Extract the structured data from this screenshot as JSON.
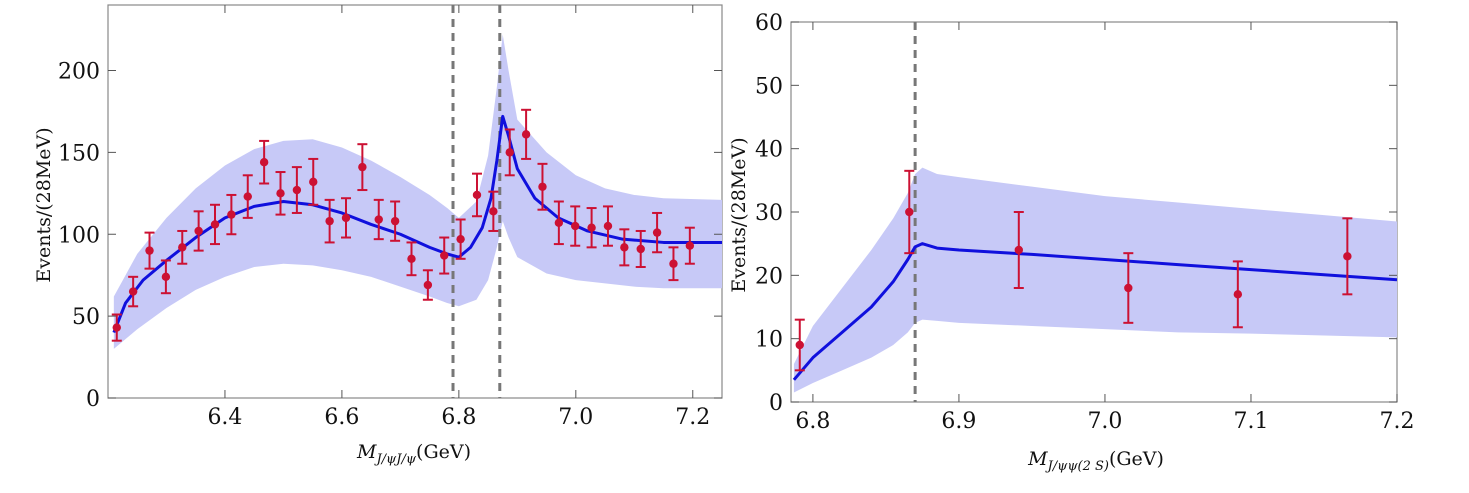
{
  "chart_data": [
    {
      "type": "line",
      "ylabel": "Events/(28MeV)",
      "xlabel_main": "M",
      "xlabel_sub": "J/ψJ/ψ",
      "xlabel_unit": "(GeV)",
      "xlim": [
        6.2,
        7.25
      ],
      "ylim": [
        0,
        240
      ],
      "xticks": [
        6.4,
        6.6,
        6.8,
        7.0,
        7.2
      ],
      "xtick_labels": [
        "6.4",
        "6.6",
        "6.8",
        "7.0",
        "7.2"
      ],
      "yticks": [
        0,
        50,
        100,
        150,
        200
      ],
      "ytick_labels": [
        "0",
        "50",
        "100",
        "150",
        "200"
      ],
      "vlines": [
        6.79,
        6.87
      ],
      "fit_curve": {
        "x": [
          6.21,
          6.23,
          6.26,
          6.3,
          6.35,
          6.4,
          6.45,
          6.5,
          6.55,
          6.6,
          6.65,
          6.7,
          6.75,
          6.78,
          6.8,
          6.82,
          6.84,
          6.855,
          6.865,
          6.875,
          6.885,
          6.9,
          6.93,
          6.97,
          7.02,
          7.08,
          7.15,
          7.25
        ],
        "y": [
          40,
          58,
          72,
          84,
          98,
          110,
          117,
          120,
          118,
          113,
          106,
          100,
          92,
          88,
          86,
          92,
          104,
          122,
          145,
          172,
          160,
          140,
          122,
          110,
          102,
          97,
          95,
          95
        ]
      },
      "band_upper": {
        "x": [
          6.21,
          6.25,
          6.3,
          6.35,
          6.4,
          6.45,
          6.5,
          6.55,
          6.6,
          6.65,
          6.7,
          6.75,
          6.78,
          6.8,
          6.83,
          6.85,
          6.865,
          6.875,
          6.885,
          6.9,
          6.95,
          7.0,
          7.05,
          7.1,
          7.15,
          7.25
        ],
        "y": [
          62,
          88,
          110,
          128,
          142,
          152,
          157,
          158,
          153,
          145,
          135,
          124,
          116,
          110,
          120,
          148,
          190,
          222,
          200,
          170,
          150,
          136,
          128,
          124,
          122,
          121
        ]
      },
      "band_lower": {
        "x": [
          6.21,
          6.25,
          6.3,
          6.35,
          6.4,
          6.45,
          6.5,
          6.55,
          6.6,
          6.65,
          6.7,
          6.75,
          6.78,
          6.8,
          6.83,
          6.85,
          6.865,
          6.875,
          6.885,
          6.9,
          6.95,
          7.0,
          7.05,
          7.1,
          7.15,
          7.25
        ],
        "y": [
          30,
          42,
          55,
          66,
          74,
          80,
          82,
          81,
          78,
          74,
          68,
          62,
          58,
          56,
          60,
          72,
          92,
          108,
          98,
          86,
          76,
          72,
          70,
          68,
          67,
          67
        ]
      },
      "points": [
        {
          "x": 6.215,
          "y": 43,
          "err": 8
        },
        {
          "x": 6.243,
          "y": 65,
          "err": 9
        },
        {
          "x": 6.271,
          "y": 90,
          "err": 11
        },
        {
          "x": 6.299,
          "y": 74,
          "err": 10
        },
        {
          "x": 6.327,
          "y": 92,
          "err": 10
        },
        {
          "x": 6.355,
          "y": 102,
          "err": 12
        },
        {
          "x": 6.383,
          "y": 106,
          "err": 12
        },
        {
          "x": 6.411,
          "y": 112,
          "err": 12
        },
        {
          "x": 6.439,
          "y": 123,
          "err": 13
        },
        {
          "x": 6.467,
          "y": 144,
          "err": 13
        },
        {
          "x": 6.495,
          "y": 125,
          "err": 13
        },
        {
          "x": 6.523,
          "y": 127,
          "err": 14
        },
        {
          "x": 6.551,
          "y": 132,
          "err": 14
        },
        {
          "x": 6.579,
          "y": 108,
          "err": 13
        },
        {
          "x": 6.607,
          "y": 110,
          "err": 12
        },
        {
          "x": 6.635,
          "y": 141,
          "err": 14
        },
        {
          "x": 6.663,
          "y": 109,
          "err": 12
        },
        {
          "x": 6.691,
          "y": 108,
          "err": 12
        },
        {
          "x": 6.719,
          "y": 85,
          "err": 10
        },
        {
          "x": 6.747,
          "y": 69,
          "err": 9
        },
        {
          "x": 6.775,
          "y": 87,
          "err": 11
        },
        {
          "x": 6.803,
          "y": 97,
          "err": 12
        },
        {
          "x": 6.831,
          "y": 124,
          "err": 13
        },
        {
          "x": 6.859,
          "y": 114,
          "err": 12
        },
        {
          "x": 6.887,
          "y": 150,
          "err": 14
        },
        {
          "x": 6.915,
          "y": 161,
          "err": 15
        },
        {
          "x": 6.943,
          "y": 129,
          "err": 14
        },
        {
          "x": 6.971,
          "y": 107,
          "err": 13
        },
        {
          "x": 6.999,
          "y": 105,
          "err": 12
        },
        {
          "x": 7.027,
          "y": 104,
          "err": 12
        },
        {
          "x": 7.055,
          "y": 105,
          "err": 12
        },
        {
          "x": 7.083,
          "y": 92,
          "err": 11
        },
        {
          "x": 7.111,
          "y": 91,
          "err": 11
        },
        {
          "x": 7.139,
          "y": 101,
          "err": 12
        },
        {
          "x": 7.167,
          "y": 82,
          "err": 10
        },
        {
          "x": 7.195,
          "y": 93,
          "err": 11
        }
      ]
    },
    {
      "type": "line",
      "ylabel": "Events/(28MeV)",
      "xlabel_main": "M",
      "xlabel_sub": "J/ψψ(2 S)",
      "xlabel_unit": "(GeV)",
      "xlim": [
        6.785,
        7.2
      ],
      "ylim": [
        0,
        60
      ],
      "xticks": [
        6.8,
        6.9,
        7.0,
        7.1,
        7.2
      ],
      "xtick_labels": [
        "6.8",
        "6.9",
        "7.0",
        "7.1",
        "7.2"
      ],
      "yticks": [
        0,
        10,
        20,
        30,
        40,
        50,
        60
      ],
      "ytick_labels": [
        "0",
        "10",
        "20",
        "30",
        "40",
        "50",
        "60"
      ],
      "vlines": [
        6.87
      ],
      "fit_curve": {
        "x": [
          6.787,
          6.8,
          6.82,
          6.84,
          6.855,
          6.865,
          6.87,
          6.875,
          6.885,
          6.9,
          6.95,
          7.0,
          7.05,
          7.1,
          7.15,
          7.2
        ],
        "y": [
          3.5,
          7,
          11,
          15,
          19,
          22.5,
          24.5,
          25,
          24.3,
          24,
          23.3,
          22.5,
          21.7,
          20.9,
          20.1,
          19.3
        ]
      },
      "band_upper": {
        "x": [
          6.787,
          6.8,
          6.82,
          6.84,
          6.855,
          6.865,
          6.87,
          6.875,
          6.885,
          6.9,
          6.95,
          7.0,
          7.05,
          7.1,
          7.15,
          7.2
        ],
        "y": [
          6,
          12,
          18,
          24,
          29,
          33,
          36,
          37,
          36,
          35.5,
          34,
          32.5,
          31.5,
          30.5,
          29.5,
          28.5
        ]
      },
      "band_lower": {
        "x": [
          6.787,
          6.8,
          6.82,
          6.84,
          6.855,
          6.865,
          6.87,
          6.875,
          6.885,
          6.9,
          6.95,
          7.0,
          7.05,
          7.1,
          7.15,
          7.2
        ],
        "y": [
          1.5,
          3,
          5,
          7,
          9,
          11,
          12.5,
          13,
          12.8,
          12.5,
          12,
          11.5,
          11,
          10.8,
          10.5,
          10.2
        ]
      },
      "points": [
        {
          "x": 6.791,
          "y": 9,
          "err": 4
        },
        {
          "x": 6.866,
          "y": 30,
          "err": 6.5
        },
        {
          "x": 6.941,
          "y": 24,
          "err": 6
        },
        {
          "x": 7.016,
          "y": 18,
          "err": 5.5
        },
        {
          "x": 7.091,
          "y": 17,
          "err": 5.2
        },
        {
          "x": 7.166,
          "y": 23,
          "err": 6
        }
      ]
    }
  ]
}
